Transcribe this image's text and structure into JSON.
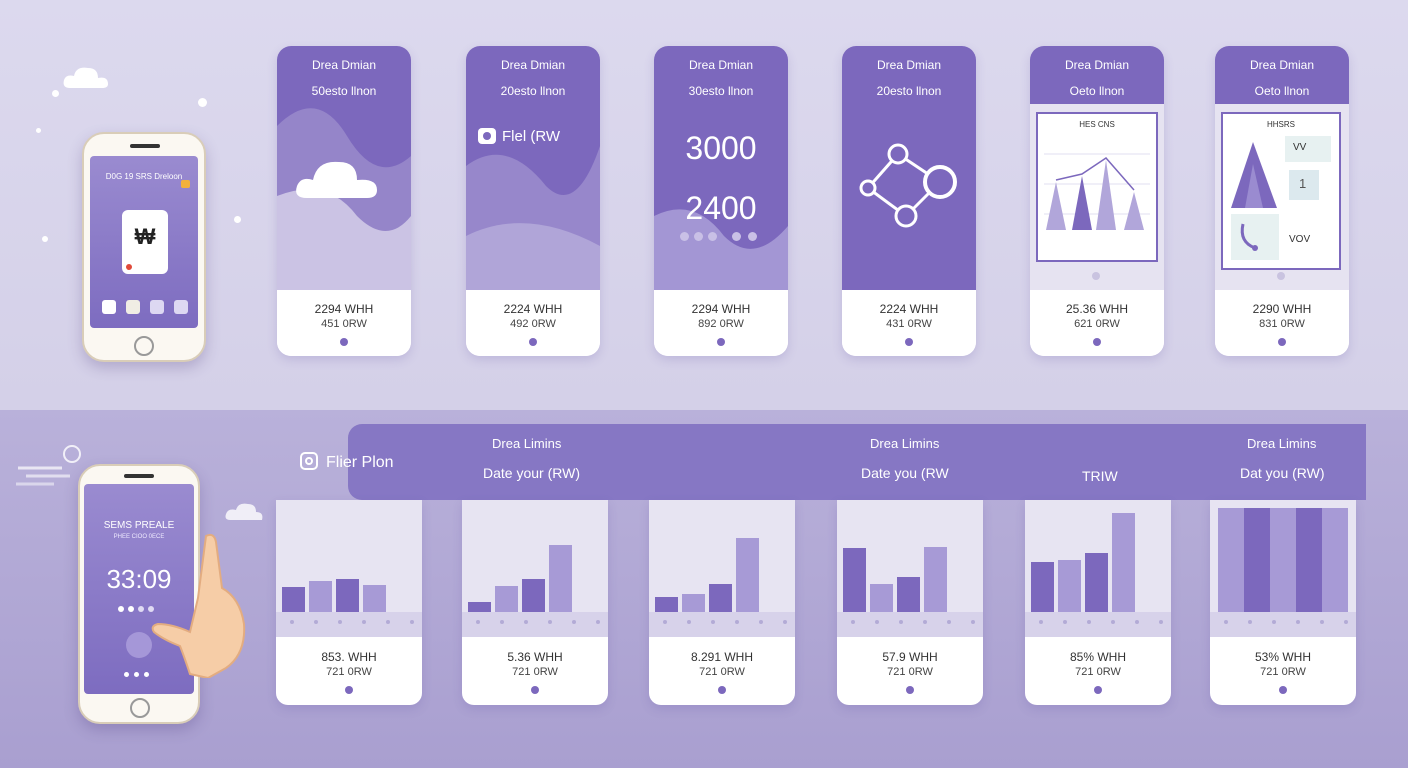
{
  "top_phone": {
    "header": "D0G 19 SRS Dreloon",
    "symbol": "₩"
  },
  "top_cards": [
    {
      "title": "Drea Dmian",
      "subtitle": "50esto llnon",
      "line1": "2294 WHH",
      "line2": "451 0RW"
    },
    {
      "title": "Drea Dmian",
      "subtitle": "20esto llnon",
      "badge": "Flel (RW",
      "line1": "2224 WHH",
      "line2": "492 0RW"
    },
    {
      "title": "Drea Dmian",
      "subtitle": "30esto llnon",
      "big1": "3000",
      "big2": "2400",
      "line1": "2294 WHH",
      "line2": "892 0RW"
    },
    {
      "title": "Drea Dmian",
      "subtitle": "20esto llnon",
      "line1": "2224 WHH",
      "line2": "431 0RW"
    },
    {
      "title": "Drea Dmian",
      "subtitle": "Oeto llnon",
      "inner_title": "HES CNS",
      "line1": "25.36 WHH",
      "line2": "621 0RW"
    },
    {
      "title": "Drea Dmian",
      "subtitle": "Oeto llnon",
      "inner_title": "HHSRS",
      "inner_a": "VV",
      "inner_b": "1",
      "inner_c": "VOV",
      "line1": "2290 WHH",
      "line2": "831 0RW"
    }
  ],
  "bottom_phone": {
    "header1": "SEMS PREALE",
    "header2": "PHEE CIOO 0ECE",
    "time": "33:09"
  },
  "banner": {
    "left_label": "Flier Plon",
    "col1_title": "Drea Limins",
    "col1_sub": "Date your (RW)",
    "col2_title": "Drea Limins",
    "col2_sub": "Date you (RW",
    "col3_label": "TRIW",
    "col4_title": "Drea Limins",
    "col4_sub": "Dat you (RW)"
  },
  "bottom_cards": [
    {
      "line1": "853. WHH",
      "line2": "721 0RW",
      "bars": [
        0.33,
        0.42,
        0.44,
        0.36
      ]
    },
    {
      "line1": "5.36 WHH",
      "line2": "721 0RW",
      "bars": [
        0.13,
        0.35,
        0.45,
        0.9
      ]
    },
    {
      "line1": "8.291 WHH",
      "line2": "721 0RW",
      "bars": [
        0.2,
        0.24,
        0.38,
        1.0
      ]
    },
    {
      "line1": "57.9 WHH",
      "line2": "721 0RW",
      "bars": [
        0.86,
        0.38,
        0.47,
        0.87
      ]
    },
    {
      "line1": "85% WHH",
      "line2": "721 0RW",
      "bars": [
        0.67,
        0.7,
        0.8,
        1.33
      ]
    },
    {
      "line1": "53% WHH",
      "line2": "721 0RW",
      "bars": [
        1.4,
        1.4,
        1.4,
        1.4,
        1.4
      ]
    }
  ],
  "colors": {
    "accent": "#7c68bd",
    "accent_light": "#a79ad6",
    "background_top": "#dcd9ee",
    "background_bottom": "#b1a8d6"
  },
  "icons": [
    "cloud-icon",
    "camera-icon",
    "network-nodes-icon",
    "instagram-icon",
    "hand-icon",
    "phone-icon"
  ]
}
